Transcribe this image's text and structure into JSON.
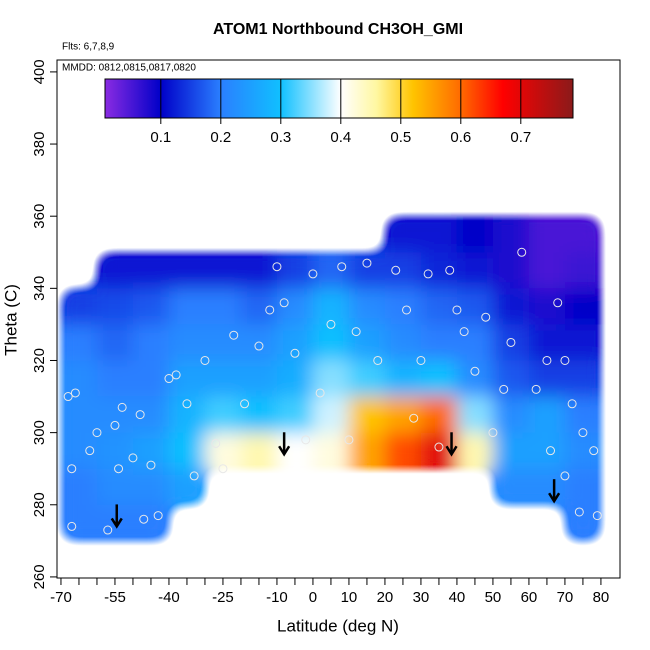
{
  "chart_data": {
    "type": "heatmap",
    "title": "ATOM1 Northbound CH3OH_GMI",
    "subtitle": "Flts: 6,7,8,9",
    "annotation": "MMDD: 0812,0815,0817,0820",
    "xlabel": "Latitude (deg N)",
    "ylabel": "Theta (C)",
    "xlim": [
      -71.1,
      85.3
    ],
    "ylim": [
      259.7,
      403.3
    ],
    "xticks": [
      -70,
      -55,
      -40,
      -25,
      -10,
      0,
      10,
      20,
      30,
      40,
      50,
      60,
      70,
      80
    ],
    "xminor_ticks": [
      -65,
      -60,
      -50,
      -45,
      -35,
      -30,
      -20,
      -15,
      -5,
      5,
      15,
      25,
      35,
      45,
      55,
      65,
      75
    ],
    "yticks": [
      260,
      280,
      300,
      320,
      340,
      360,
      380,
      400
    ],
    "lat": [
      -65,
      -55,
      -45,
      -35,
      -25,
      -15,
      -5,
      5,
      15,
      25,
      35,
      45,
      55,
      65,
      75
    ],
    "theta": [
      355,
      345,
      335,
      325,
      315,
      305,
      295,
      285,
      275
    ],
    "z": [
      [
        null,
        null,
        null,
        null,
        null,
        null,
        null,
        null,
        null,
        0.12,
        0.12,
        0.1,
        0.08,
        0.05,
        0.05
      ],
      [
        null,
        0.12,
        0.12,
        0.12,
        0.12,
        0.12,
        0.15,
        0.18,
        0.15,
        0.15,
        0.13,
        0.12,
        0.08,
        0.05,
        0.06
      ],
      [
        0.15,
        0.16,
        0.17,
        0.2,
        0.2,
        0.18,
        0.22,
        0.28,
        0.22,
        0.2,
        0.18,
        0.17,
        0.12,
        0.08,
        0.1
      ],
      [
        0.2,
        0.18,
        0.2,
        0.22,
        0.22,
        0.22,
        0.25,
        0.3,
        0.25,
        0.22,
        0.2,
        0.2,
        0.15,
        0.12,
        0.12
      ],
      [
        0.22,
        0.2,
        0.2,
        0.25,
        0.25,
        0.25,
        0.27,
        0.35,
        0.32,
        0.28,
        0.3,
        0.22,
        0.17,
        0.15,
        0.15
      ],
      [
        0.22,
        0.22,
        0.22,
        0.28,
        0.32,
        0.3,
        0.32,
        0.38,
        0.52,
        0.55,
        0.6,
        0.35,
        0.22,
        0.25,
        0.2
      ],
      [
        0.22,
        0.23,
        0.25,
        0.3,
        0.42,
        0.45,
        0.4,
        0.42,
        0.55,
        0.62,
        0.7,
        0.45,
        0.25,
        0.25,
        0.22
      ],
      [
        0.2,
        0.22,
        0.22,
        0.25,
        null,
        null,
        null,
        null,
        null,
        null,
        null,
        null,
        0.22,
        0.22,
        0.2
      ],
      [
        0.2,
        0.2,
        0.2,
        null,
        null,
        null,
        null,
        null,
        null,
        null,
        null,
        null,
        null,
        null,
        0.2
      ]
    ],
    "clim": [
      0.007,
      0.787
    ],
    "colorbar_ticks": [
      0.1,
      0.2,
      0.3,
      0.4,
      0.5,
      0.6,
      0.7
    ],
    "colorscale": [
      [
        0.007,
        "#8a2be2"
      ],
      [
        0.1,
        "#0000c8"
      ],
      [
        0.2,
        "#2a7fff"
      ],
      [
        0.3,
        "#10c0ff"
      ],
      [
        0.4,
        "#ffffff"
      ],
      [
        0.46,
        "#fff7a0"
      ],
      [
        0.52,
        "#ffc400"
      ],
      [
        0.6,
        "#ff6a00"
      ],
      [
        0.67,
        "#ff0000"
      ],
      [
        0.787,
        "#8b1a1a"
      ]
    ],
    "points": {
      "x": [
        -68,
        -66,
        -67,
        -67,
        -62,
        -60,
        -57,
        -55,
        -53,
        -54,
        -50,
        -48,
        -47,
        -43,
        -45,
        -40,
        -38,
        -35,
        -33,
        -30,
        -27,
        -25,
        -22,
        -19,
        -15,
        -12,
        -10,
        -8,
        -5,
        -2,
        0,
        2,
        5,
        8,
        10,
        12,
        15,
        18,
        23,
        26,
        28,
        30,
        32,
        35,
        38,
        40,
        42,
        45,
        48,
        50,
        53,
        55,
        58,
        62,
        65,
        68,
        70,
        72,
        75,
        78,
        66,
        70,
        74,
        79
      ],
      "y": [
        310,
        311,
        290,
        274,
        295,
        300,
        273,
        302,
        307,
        290,
        293,
        305,
        276,
        277,
        291,
        315,
        316,
        308,
        288,
        320,
        297,
        290,
        327,
        308,
        324,
        334,
        346,
        336,
        322,
        298,
        344,
        311,
        330,
        346,
        298,
        328,
        347,
        320,
        345,
        334,
        304,
        320,
        344,
        296,
        345,
        334,
        328,
        317,
        332,
        300,
        312,
        325,
        350,
        312,
        320,
        336,
        320,
        308,
        300,
        295,
        295,
        288,
        278,
        277
      ]
    },
    "arrows": {
      "x": [
        -54.5,
        -8,
        38.5,
        67
      ],
      "y": [
        274,
        294,
        294,
        281
      ]
    }
  }
}
